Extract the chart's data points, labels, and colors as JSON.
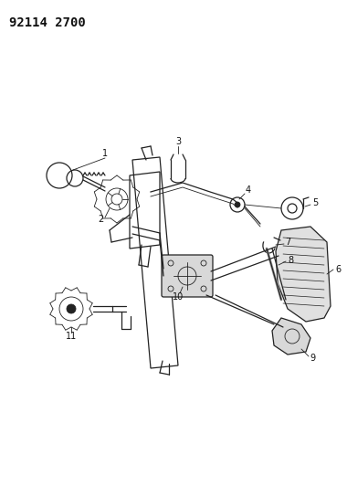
{
  "title": "92114 2700",
  "bg_color": "#ffffff",
  "line_color": "#222222",
  "label_color": "#111111",
  "figsize": [
    3.8,
    5.33
  ],
  "dpi": 100,
  "title_fontsize": 10,
  "label_fontsize": 7
}
